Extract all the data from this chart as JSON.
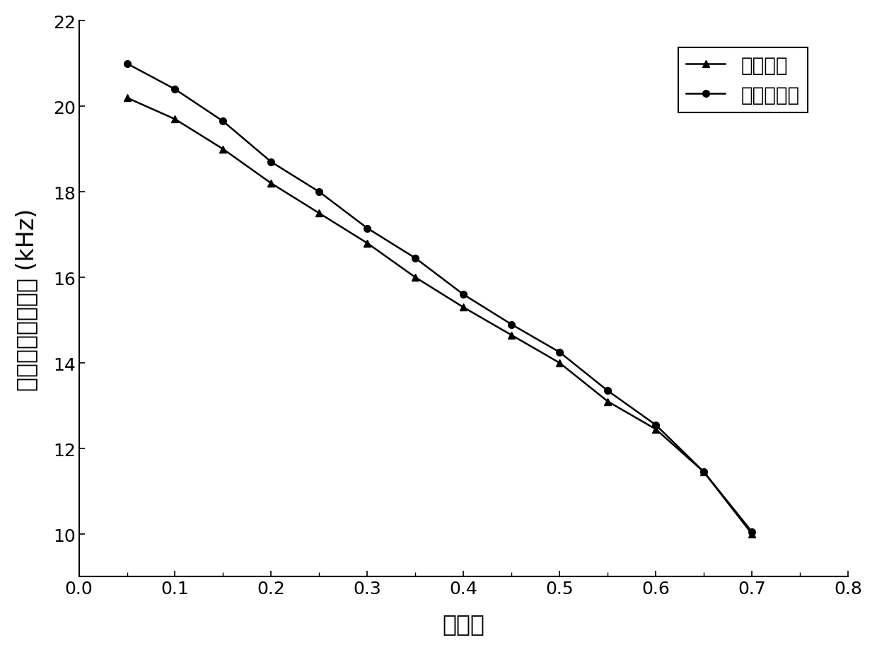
{
  "resonance_x": [
    0.05,
    0.1,
    0.15,
    0.2,
    0.25,
    0.3,
    0.35,
    0.4,
    0.45,
    0.5,
    0.55,
    0.6,
    0.65,
    0.7
  ],
  "resonance_y": [
    20.2,
    19.7,
    19.0,
    18.2,
    17.5,
    16.8,
    16.0,
    15.3,
    14.65,
    14.0,
    13.1,
    12.45,
    11.45,
    10.0
  ],
  "anti_resonance_x": [
    0.05,
    0.1,
    0.15,
    0.2,
    0.25,
    0.3,
    0.35,
    0.4,
    0.45,
    0.5,
    0.55,
    0.6,
    0.65,
    0.7
  ],
  "anti_resonance_y": [
    21.0,
    20.4,
    19.65,
    18.7,
    18.0,
    17.15,
    16.45,
    15.6,
    14.9,
    14.25,
    13.35,
    12.55,
    11.45,
    10.05
  ],
  "xlabel": "穿孔率",
  "ylabel": "共振及反共振频率 (kHz)",
  "legend_resonance": "共振频率",
  "legend_anti_resonance": "反共振频率",
  "xlim": [
    0.0,
    0.8
  ],
  "ylim": [
    9.0,
    22.0
  ],
  "xticks": [
    0.0,
    0.1,
    0.2,
    0.3,
    0.4,
    0.5,
    0.6,
    0.7,
    0.8
  ],
  "yticks": [
    10,
    12,
    14,
    16,
    18,
    20,
    22
  ],
  "line_color": "#000000",
  "background_color": "#ffffff",
  "font_size_label": 24,
  "font_size_tick": 18,
  "font_size_legend": 20,
  "line_width": 1.8,
  "marker_size": 7
}
